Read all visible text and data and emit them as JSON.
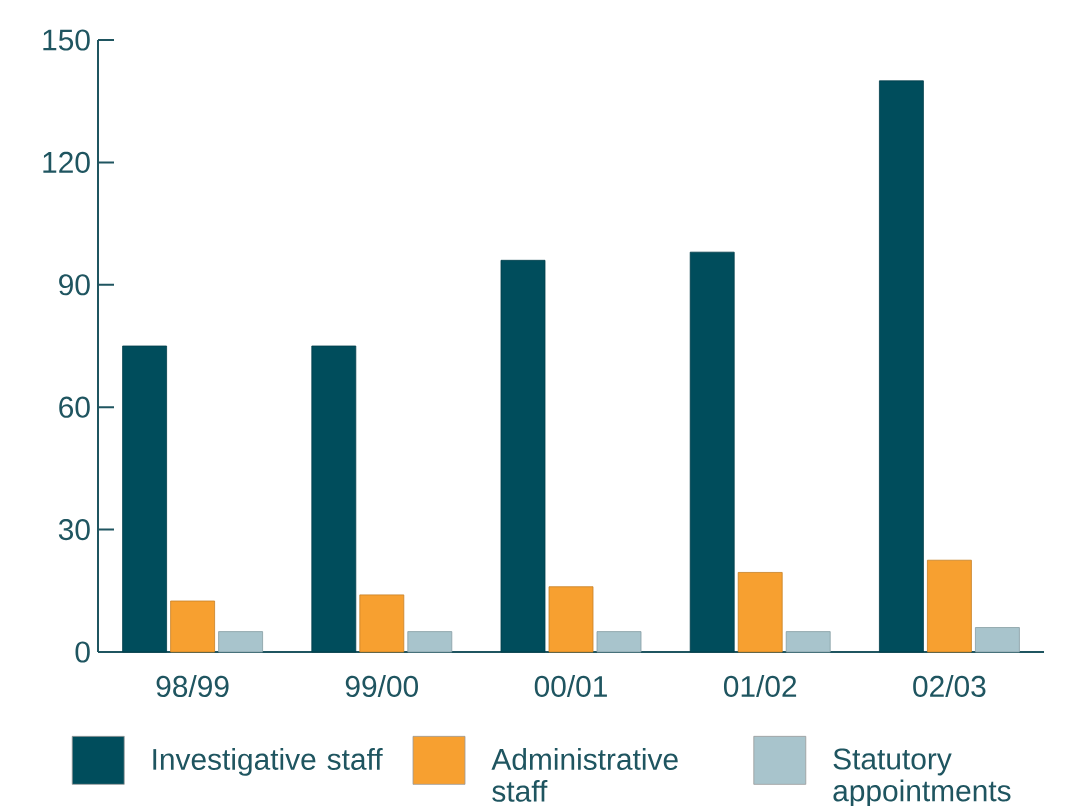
{
  "chart_data": {
    "type": "bar",
    "categories": [
      "98/99",
      "99/00",
      "00/01",
      "01/02",
      "02/03"
    ],
    "series": [
      {
        "name": "Investigative staff",
        "color": "#004d5c",
        "values": [
          75,
          75,
          96,
          98,
          140
        ]
      },
      {
        "name": "Administrative staff",
        "color": "#f7a030",
        "values": [
          12.5,
          14,
          16,
          19.5,
          22.5
        ]
      },
      {
        "name": "Statutory appointments",
        "color": "#a8c4cc",
        "values": [
          5,
          5,
          5,
          5,
          6
        ]
      }
    ],
    "ylim": [
      0,
      150
    ],
    "yticks": [
      0,
      30,
      60,
      90,
      120,
      150
    ],
    "grid": false,
    "legend": "bottom"
  }
}
